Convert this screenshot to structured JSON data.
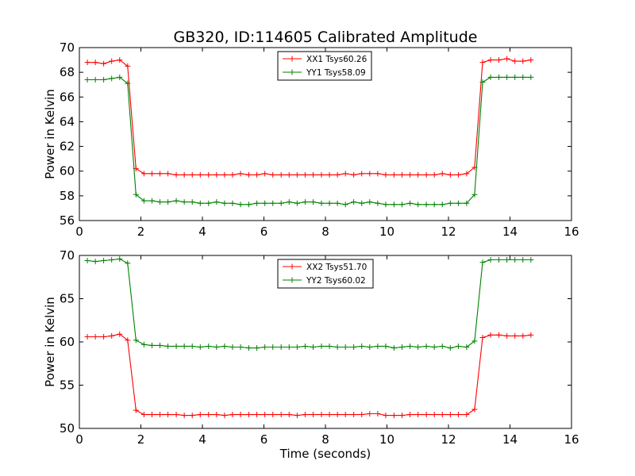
{
  "figure": {
    "title": "GB320, ID:114605 Calibrated Amplitude"
  },
  "chart_data": [
    {
      "type": "line",
      "title": "GB320, ID:114605 Calibrated Amplitude",
      "xlabel": "",
      "ylabel": "Power in Kelvin",
      "xlim": [
        0,
        16
      ],
      "ylim": [
        56,
        70
      ],
      "xticks": [
        0,
        2,
        4,
        6,
        8,
        10,
        12,
        14,
        16
      ],
      "yticks": [
        56,
        58,
        60,
        62,
        64,
        66,
        68,
        70
      ],
      "legend_position": "upper-center",
      "x": [
        0.26,
        0.52,
        0.79,
        1.05,
        1.31,
        1.57,
        1.84,
        2.1,
        2.36,
        2.62,
        2.88,
        3.15,
        3.41,
        3.67,
        3.93,
        4.2,
        4.46,
        4.72,
        4.98,
        5.24,
        5.51,
        5.77,
        6.03,
        6.29,
        6.56,
        6.82,
        7.08,
        7.34,
        7.6,
        7.87,
        8.13,
        8.39,
        8.65,
        8.92,
        9.18,
        9.44,
        9.7,
        9.96,
        10.23,
        10.49,
        10.75,
        11.01,
        11.28,
        11.54,
        11.8,
        12.06,
        12.32,
        12.59,
        12.85,
        13.11,
        13.37,
        13.64,
        13.9,
        14.16,
        14.42,
        14.68
      ],
      "series": [
        {
          "name": "XX1 Tsys60.26",
          "color": "#ff0000",
          "values": [
            68.8,
            68.8,
            68.7,
            68.9,
            69.0,
            68.5,
            60.2,
            59.8,
            59.8,
            59.8,
            59.8,
            59.7,
            59.7,
            59.7,
            59.7,
            59.7,
            59.7,
            59.7,
            59.7,
            59.8,
            59.7,
            59.7,
            59.8,
            59.7,
            59.7,
            59.7,
            59.7,
            59.7,
            59.7,
            59.7,
            59.7,
            59.7,
            59.8,
            59.7,
            59.8,
            59.8,
            59.8,
            59.7,
            59.7,
            59.7,
            59.7,
            59.7,
            59.7,
            59.7,
            59.8,
            59.7,
            59.7,
            59.8,
            60.3,
            68.8,
            69.0,
            69.0,
            69.1,
            68.9,
            68.9,
            69.0
          ]
        },
        {
          "name": "YY1 Tsys58.09",
          "color": "#008000",
          "values": [
            67.4,
            67.4,
            67.4,
            67.5,
            67.6,
            67.1,
            58.1,
            57.6,
            57.6,
            57.5,
            57.5,
            57.6,
            57.5,
            57.5,
            57.4,
            57.4,
            57.5,
            57.4,
            57.4,
            57.3,
            57.3,
            57.4,
            57.4,
            57.4,
            57.4,
            57.5,
            57.4,
            57.5,
            57.5,
            57.4,
            57.4,
            57.4,
            57.3,
            57.5,
            57.4,
            57.5,
            57.4,
            57.3,
            57.3,
            57.3,
            57.4,
            57.3,
            57.3,
            57.3,
            57.3,
            57.4,
            57.4,
            57.4,
            58.1,
            67.2,
            67.6,
            67.6,
            67.6,
            67.6,
            67.6,
            67.6
          ]
        }
      ]
    },
    {
      "type": "line",
      "title": "",
      "xlabel": "Time (seconds)",
      "ylabel": "Power in Kelvin",
      "xlim": [
        0,
        16
      ],
      "ylim": [
        50,
        70
      ],
      "xticks": [
        0,
        2,
        4,
        6,
        8,
        10,
        12,
        14,
        16
      ],
      "yticks": [
        50,
        55,
        60,
        65,
        70
      ],
      "legend_position": "upper-center",
      "x": [
        0.26,
        0.52,
        0.79,
        1.05,
        1.31,
        1.57,
        1.84,
        2.1,
        2.36,
        2.62,
        2.88,
        3.15,
        3.41,
        3.67,
        3.93,
        4.2,
        4.46,
        4.72,
        4.98,
        5.24,
        5.51,
        5.77,
        6.03,
        6.29,
        6.56,
        6.82,
        7.08,
        7.34,
        7.6,
        7.87,
        8.13,
        8.39,
        8.65,
        8.92,
        9.18,
        9.44,
        9.7,
        9.96,
        10.23,
        10.49,
        10.75,
        11.01,
        11.28,
        11.54,
        11.8,
        12.06,
        12.32,
        12.59,
        12.85,
        13.11,
        13.37,
        13.64,
        13.9,
        14.16,
        14.42,
        14.68
      ],
      "series": [
        {
          "name": "XX2 Tsys51.70",
          "color": "#ff0000",
          "values": [
            60.6,
            60.6,
            60.6,
            60.7,
            60.9,
            60.2,
            52.1,
            51.6,
            51.6,
            51.6,
            51.6,
            51.6,
            51.5,
            51.5,
            51.6,
            51.6,
            51.6,
            51.5,
            51.6,
            51.6,
            51.6,
            51.6,
            51.6,
            51.6,
            51.6,
            51.6,
            51.5,
            51.6,
            51.6,
            51.6,
            51.6,
            51.6,
            51.6,
            51.6,
            51.6,
            51.7,
            51.7,
            51.5,
            51.5,
            51.5,
            51.6,
            51.6,
            51.6,
            51.6,
            51.6,
            51.6,
            51.6,
            51.6,
            52.2,
            60.5,
            60.8,
            60.8,
            60.7,
            60.7,
            60.7,
            60.8
          ]
        },
        {
          "name": "YY2 Tsys60.02",
          "color": "#008000",
          "values": [
            69.4,
            69.3,
            69.4,
            69.5,
            69.6,
            69.1,
            60.2,
            59.7,
            59.6,
            59.6,
            59.5,
            59.5,
            59.5,
            59.5,
            59.4,
            59.5,
            59.4,
            59.5,
            59.4,
            59.4,
            59.3,
            59.3,
            59.4,
            59.4,
            59.4,
            59.4,
            59.4,
            59.5,
            59.4,
            59.5,
            59.5,
            59.4,
            59.4,
            59.4,
            59.5,
            59.4,
            59.5,
            59.5,
            59.3,
            59.4,
            59.5,
            59.4,
            59.5,
            59.4,
            59.5,
            59.3,
            59.5,
            59.4,
            60.1,
            69.2,
            69.5,
            69.5,
            69.5,
            69.5,
            69.5,
            69.5
          ]
        }
      ]
    }
  ]
}
